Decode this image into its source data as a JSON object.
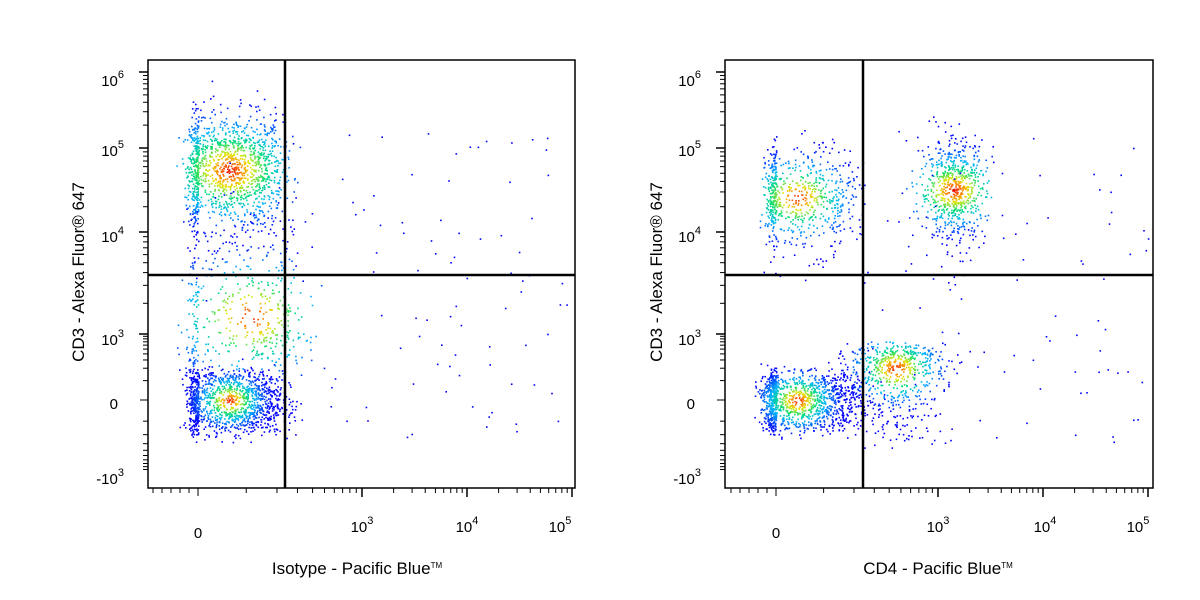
{
  "chart_data": [
    {
      "type": "scatter",
      "xlabel": "Isotype - Pacific Blue",
      "xlabel_mark": "TM",
      "ylabel": "CD3 - Alexa Fluor® 647",
      "x_scale": "logicle",
      "y_scale": "logicle",
      "x_ticks": [
        {
          "base": "0",
          "exp": ""
        },
        {
          "base": "10",
          "exp": "3"
        },
        {
          "base": "10",
          "exp": "4"
        },
        {
          "base": "10",
          "exp": "5"
        }
      ],
      "y_ticks": [
        {
          "base": "10",
          "exp": "6"
        },
        {
          "base": "10",
          "exp": "5"
        },
        {
          "base": "10",
          "exp": "4"
        },
        {
          "base": "10",
          "exp": "3"
        },
        {
          "base": "0",
          "exp": ""
        },
        {
          "base": "-10",
          "exp": "3"
        }
      ],
      "quadrant_gate": {
        "x": 300,
        "y": 3500
      },
      "populations": [
        {
          "name": "",
          "x_center": 60,
          "y_center": 55000,
          "x_spread": 80,
          "y_spread_decades": 0.35,
          "relative_size": 1.0
        },
        {
          "name": "",
          "x_center": 60,
          "y_center": 0,
          "x_spread": 80,
          "y_spread": 90,
          "relative_size": 0.9
        },
        {
          "name": "",
          "x_center": 110,
          "y_center": 1500,
          "x_spread": 120,
          "y_spread_decades": 0.5,
          "relative_size": 0.35
        }
      ]
    },
    {
      "type": "scatter",
      "xlabel": "CD4 - Pacific Blue",
      "xlabel_mark": "TM",
      "ylabel": "CD3 - Alexa Fluor® 647",
      "x_scale": "logicle",
      "y_scale": "logicle",
      "x_ticks": [
        {
          "base": "0",
          "exp": ""
        },
        {
          "base": "10",
          "exp": "3"
        },
        {
          "base": "10",
          "exp": "4"
        },
        {
          "base": "10",
          "exp": "5"
        }
      ],
      "y_ticks": [
        {
          "base": "10",
          "exp": "6"
        },
        {
          "base": "10",
          "exp": "5"
        },
        {
          "base": "10",
          "exp": "4"
        },
        {
          "base": "10",
          "exp": "3"
        },
        {
          "base": "0",
          "exp": ""
        },
        {
          "base": "-10",
          "exp": "3"
        }
      ],
      "quadrant_gate": {
        "x": 250,
        "y": 3500
      },
      "populations": [
        {
          "name": "",
          "x_center": 40,
          "y_center": 26000,
          "x_spread": 80,
          "y_spread_decades": 0.3,
          "relative_size": 0.5
        },
        {
          "name": "",
          "x_center": 1400,
          "y_center": 32000,
          "x_spread_decades": 0.15,
          "y_spread_decades": 0.3,
          "relative_size": 0.5
        },
        {
          "name": "",
          "x_center": 40,
          "y_center": 0,
          "x_spread": 90,
          "y_spread": 80,
          "relative_size": 0.9
        },
        {
          "name": "",
          "x_center": 450,
          "y_center": 200,
          "x_spread_decades": 0.2,
          "y_spread": 200,
          "relative_size": 0.45
        }
      ]
    }
  ]
}
